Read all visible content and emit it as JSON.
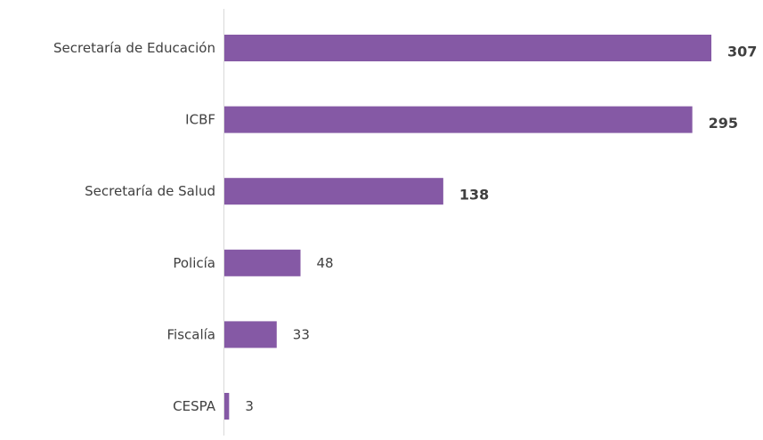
{
  "chart_data": {
    "type": "bar",
    "orientation": "horizontal",
    "categories": [
      "Secretaría de Educación",
      "ICBF",
      "Secretaría de Salud",
      "Policía",
      "Fiscalía",
      "CESPA"
    ],
    "values": [
      307,
      295,
      138,
      48,
      33,
      3
    ],
    "value_labels": [
      "307",
      "295",
      "138",
      "48",
      "33",
      "3"
    ],
    "bold_value_labels": [
      true,
      true,
      true,
      false,
      false,
      false
    ],
    "title": "",
    "xlabel": "",
    "ylabel": "",
    "xlim": [
      0,
      307
    ],
    "grid": false,
    "legend": "none",
    "bar_color": "#8559A5",
    "axis_color": "#D9D9D9",
    "text_color": "#404040"
  }
}
